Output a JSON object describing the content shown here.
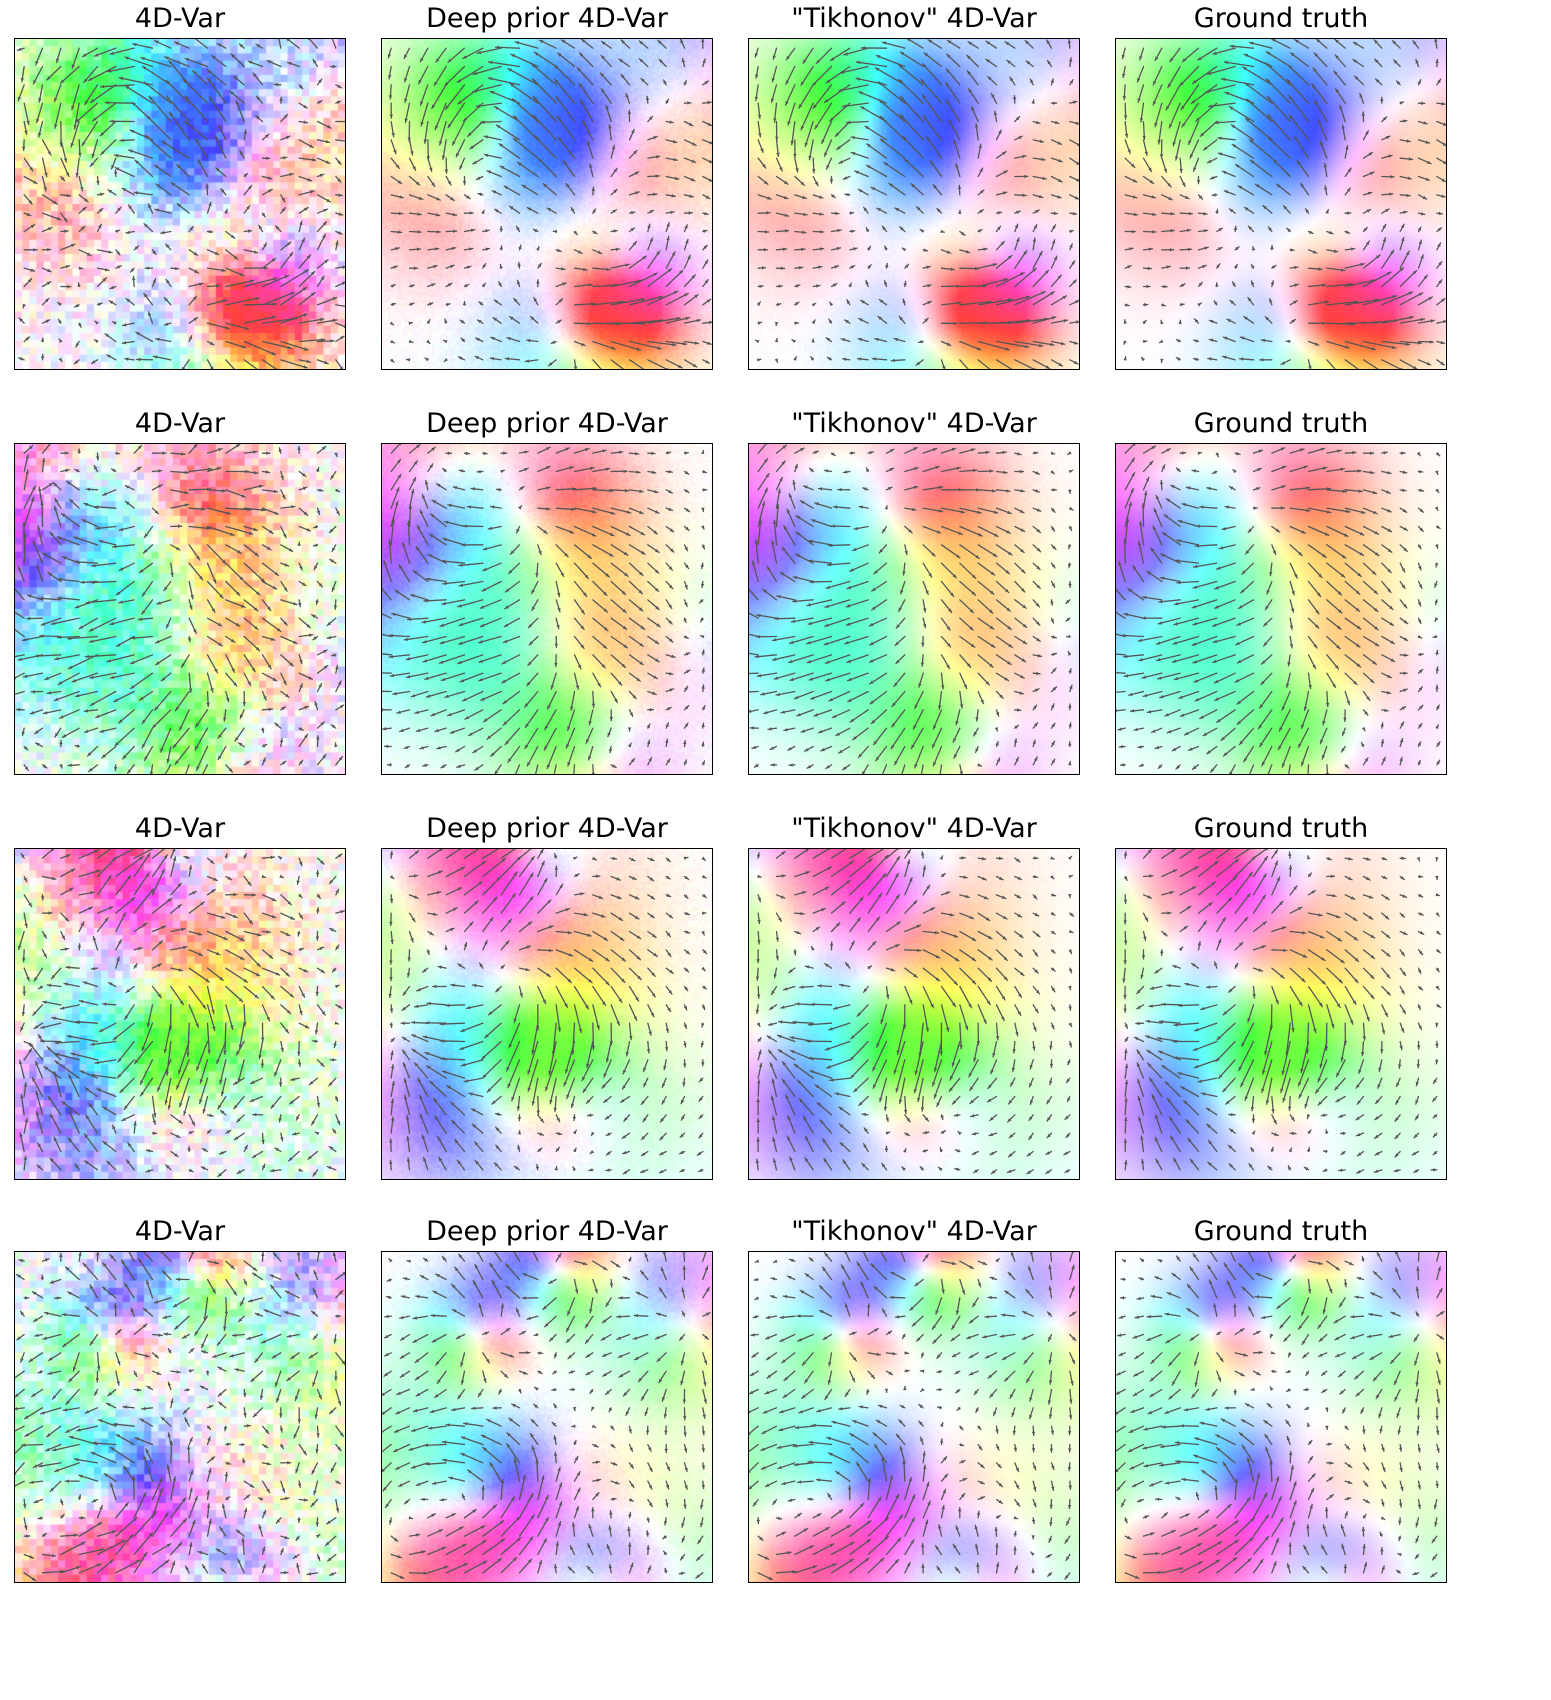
{
  "figure": {
    "row_titles": [
      "4D-Var",
      "Deep prior 4D-Var",
      "\"Tikhonov\" 4D-Var",
      "Ground truth"
    ],
    "rows": [
      {
        "panels": [
          {
            "title": "4D-Var",
            "method": "4dvar"
          },
          {
            "title": "Deep prior 4D-Var",
            "method": "deep-prior"
          },
          {
            "title": "\"Tikhonov\" 4D-Var",
            "method": "tikhonov"
          },
          {
            "title": "Ground truth",
            "method": "ground-truth"
          }
        ]
      },
      {
        "panels": [
          {
            "title": "4D-Var",
            "method": "4dvar"
          },
          {
            "title": "Deep prior 4D-Var",
            "method": "deep-prior"
          },
          {
            "title": "\"Tikhonov\" 4D-Var",
            "method": "tikhonov"
          },
          {
            "title": "Ground truth",
            "method": "ground-truth"
          }
        ]
      },
      {
        "panels": [
          {
            "title": "4D-Var",
            "method": "4dvar"
          },
          {
            "title": "Deep prior 4D-Var",
            "method": "deep-prior"
          },
          {
            "title": "\"Tikhonov\" 4D-Var",
            "method": "tikhonov"
          },
          {
            "title": "Ground truth",
            "method": "ground-truth"
          }
        ]
      },
      {
        "panels": [
          {
            "title": "4D-Var",
            "method": "4dvar"
          },
          {
            "title": "Deep prior 4D-Var",
            "method": "deep-prior"
          },
          {
            "title": "\"Tikhonov\" 4D-Var",
            "method": "tikhonov"
          },
          {
            "title": "Ground truth",
            "method": "ground-truth"
          }
        ]
      }
    ],
    "colormap": "hsv-direction (pastel)",
    "arrow_color": "#555555",
    "frame_color": "#000000"
  }
}
